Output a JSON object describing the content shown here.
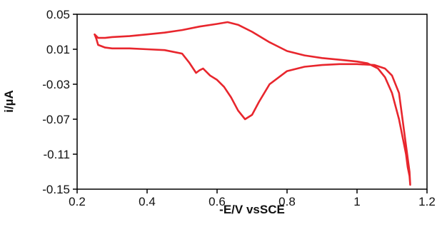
{
  "chart_data": {
    "type": "line",
    "title": "",
    "xlabel": "-E/V vsSCE",
    "ylabel": "i/µA",
    "xlim": [
      0.2,
      1.2
    ],
    "ylim": [
      -0.15,
      0.05
    ],
    "xticks": [
      0.2,
      0.4,
      0.6,
      0.8,
      1,
      1.2
    ],
    "xtick_labels": [
      "0.2",
      "0.4",
      "0.6",
      "0.8",
      "1",
      "1.2"
    ],
    "yticks": [
      0.05,
      0.01,
      -0.03,
      -0.07,
      -0.11,
      -0.15
    ],
    "ytick_labels": [
      "0.05",
      "0.01",
      "-0.03",
      "-0.07",
      "-0.11",
      "-0.15"
    ],
    "grid": false,
    "legend": "none",
    "line_color": "#e8262d",
    "series": [
      {
        "x": [
          0.25,
          0.26,
          0.28,
          0.3,
          0.35,
          0.4,
          0.45,
          0.5,
          0.55,
          0.6,
          0.63,
          0.66,
          0.7,
          0.75,
          0.8,
          0.85,
          0.9,
          0.95,
          1.0,
          1.03,
          1.06,
          1.08,
          1.1,
          1.12,
          1.13,
          1.14,
          1.145,
          1.15,
          1.152,
          1.15,
          1.14,
          1.13,
          1.12,
          1.1,
          1.08,
          1.05,
          1.0,
          0.95,
          0.9,
          0.85,
          0.8,
          0.75,
          0.72,
          0.7,
          0.68,
          0.66,
          0.64,
          0.62,
          0.6,
          0.58,
          0.56,
          0.55,
          0.54,
          0.52,
          0.5,
          0.45,
          0.4,
          0.35,
          0.3,
          0.28,
          0.26,
          0.255,
          0.25
        ],
        "y": [
          0.027,
          0.023,
          0.023,
          0.024,
          0.025,
          0.027,
          0.029,
          0.032,
          0.036,
          0.039,
          0.041,
          0.038,
          0.03,
          0.018,
          0.008,
          0.003,
          0.0,
          -0.002,
          -0.004,
          -0.006,
          -0.012,
          -0.022,
          -0.04,
          -0.07,
          -0.09,
          -0.11,
          -0.125,
          -0.135,
          -0.145,
          -0.13,
          -0.1,
          -0.07,
          -0.04,
          -0.02,
          -0.012,
          -0.008,
          -0.007,
          -0.007,
          -0.008,
          -0.01,
          -0.015,
          -0.03,
          -0.05,
          -0.065,
          -0.07,
          -0.06,
          -0.045,
          -0.033,
          -0.025,
          -0.02,
          -0.012,
          -0.014,
          -0.017,
          -0.005,
          0.005,
          0.009,
          0.01,
          0.011,
          0.011,
          0.012,
          0.015,
          0.022,
          0.027
        ]
      }
    ]
  }
}
